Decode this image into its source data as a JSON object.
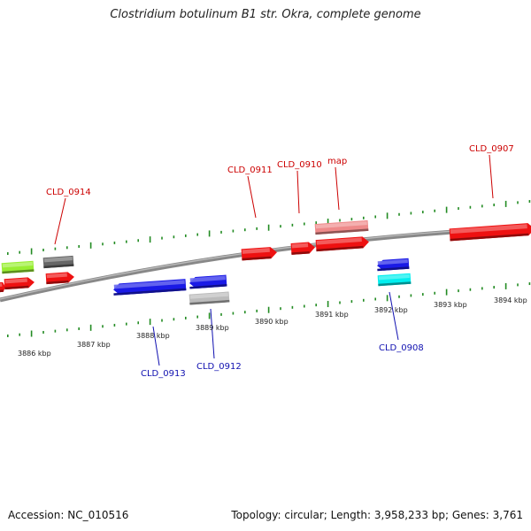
{
  "title": "Clostridium botulinum B1 str. Okra, complete genome",
  "footer": {
    "accession": "Accession: NC_010516",
    "summary": "Topology: circular; Length: 3,958,233 bp; Genes: 3,761"
  },
  "colors": {
    "red": "#ee1111",
    "blue": "#1a1ae6",
    "green": "#99ee33",
    "gray": "#666666",
    "lightgray": "#bbbbbb",
    "pink": "#ee8a8a",
    "cyan": "#00eeee",
    "tick": "#228b22",
    "label_red": "#cc0000",
    "label_blue": "#1010b0"
  },
  "kbp_labels": [
    "3886 kbp",
    "3887 kbp",
    "3888 kbp",
    "3889 kbp",
    "3890 kbp",
    "3891 kbp",
    "3892 kbp",
    "3893 kbp",
    "3894 kbp"
  ],
  "gene_labels": [
    {
      "text": "CLD_0914",
      "color": "label_red"
    },
    {
      "text": "CLD_0911",
      "color": "label_red"
    },
    {
      "text": "CLD_0910",
      "color": "label_red"
    },
    {
      "text": "map",
      "color": "label_red"
    },
    {
      "text": "CLD_0907",
      "color": "label_red"
    },
    {
      "text": "CLD_0913",
      "color": "label_blue"
    },
    {
      "text": "CLD_0912",
      "color": "label_blue"
    },
    {
      "text": "CLD_0908",
      "color": "label_blue"
    }
  ]
}
